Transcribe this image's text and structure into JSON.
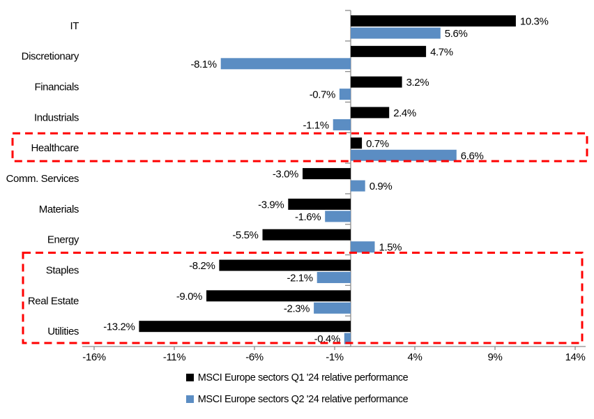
{
  "chart_data": {
    "type": "bar",
    "orientation": "horizontal",
    "title": "",
    "categories": [
      "IT",
      "Discretionary",
      "Financials",
      "Industrials",
      "Healthcare",
      "Comm. Services",
      "Materials",
      "Energy",
      "Staples",
      "Real Estate",
      "Utilities"
    ],
    "series": [
      {
        "name": "MSCI Europe sectors Q1 '24 relative performance",
        "color": "#000000",
        "values": [
          10.3,
          4.7,
          3.2,
          2.4,
          0.7,
          -3.0,
          -3.9,
          -5.5,
          -8.2,
          -9.0,
          -13.2
        ],
        "labels": [
          "10.3%",
          "4.7%",
          "3.2%",
          "2.4%",
          "0.7%",
          "-3.0%",
          "-3.9%",
          "-5.5%",
          "-8.2%",
          "-9.0%",
          "-13.2%"
        ]
      },
      {
        "name": "MSCI Europe sectors Q2 '24 relative performance",
        "color": "#5B8DC3",
        "values": [
          5.6,
          -8.1,
          -0.7,
          -1.1,
          6.6,
          0.9,
          -1.6,
          1.5,
          -2.1,
          -2.3,
          -0.4
        ],
        "labels": [
          "5.6%",
          "-8.1%",
          "-0.7%",
          "-1.1%",
          "6.6%",
          "0.9%",
          "-1.6%",
          "1.5%",
          "-2.1%",
          "-2.3%",
          "-0.4%"
        ]
      }
    ],
    "x_ticks": [
      "-16%",
      "-11%",
      "-6%",
      "-1%",
      "4%",
      "9%",
      "14%"
    ],
    "x_tick_values": [
      -16,
      -11,
      -6,
      -1,
      4,
      9,
      14
    ],
    "xlim": [
      -16,
      14
    ],
    "grid": false,
    "legend_position": "bottom",
    "axis_color": "#8C8C8C",
    "annotations": [
      {
        "type": "dashed-box",
        "color": "#FF0000",
        "categories": [
          "Healthcare"
        ],
        "from_index": 4,
        "to_index": 4
      },
      {
        "type": "dashed-box",
        "color": "#FF0000",
        "categories": [
          "Staples",
          "Real Estate",
          "Utilities"
        ],
        "from_index": 8,
        "to_index": 10
      }
    ]
  }
}
